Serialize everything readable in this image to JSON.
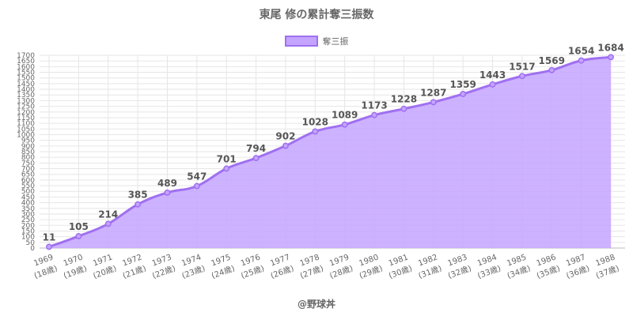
{
  "title": "東尾 修の累計奪三振数",
  "credit": "@野球丼",
  "colors": {
    "fill": "#c4a4ff",
    "line": "#a070f0",
    "grid": "#e6e6e6",
    "text": "#666666"
  },
  "chart_data": {
    "type": "area",
    "title": "東尾 修の累計奪三振数",
    "legend": {
      "position": "top",
      "entries": [
        "奪三振"
      ]
    },
    "grid": true,
    "ylim": [
      0,
      1700
    ],
    "y_ticks": [
      0,
      50,
      100,
      150,
      200,
      250,
      300,
      350,
      400,
      450,
      500,
      550,
      600,
      650,
      700,
      750,
      800,
      850,
      900,
      950,
      1000,
      1050,
      1100,
      1150,
      1200,
      1250,
      1300,
      1350,
      1400,
      1450,
      1500,
      1550,
      1600,
      1650,
      1700
    ],
    "categories": [
      "1969",
      "1970",
      "1971",
      "1972",
      "1973",
      "1974",
      "1975",
      "1976",
      "1977",
      "1978",
      "1979",
      "1980",
      "1981",
      "1982",
      "1983",
      "1984",
      "1985",
      "1986",
      "1987",
      "1988"
    ],
    "category_sublabels": [
      "(18歳)",
      "(19歳)",
      "(20歳)",
      "(21歳)",
      "(22歳)",
      "(23歳)",
      "(24歳)",
      "(25歳)",
      "(26歳)",
      "(27歳)",
      "(28歳)",
      "(29歳)",
      "(30歳)",
      "(31歳)",
      "(32歳)",
      "(33歳)",
      "(34歳)",
      "(35歳)",
      "(36歳)",
      "(37歳)"
    ],
    "series": [
      {
        "name": "奪三振",
        "values": [
          11,
          105,
          214,
          385,
          489,
          547,
          701,
          794,
          902,
          1028,
          1089,
          1173,
          1228,
          1287,
          1359,
          1443,
          1517,
          1569,
          1654,
          1684
        ]
      }
    ]
  }
}
